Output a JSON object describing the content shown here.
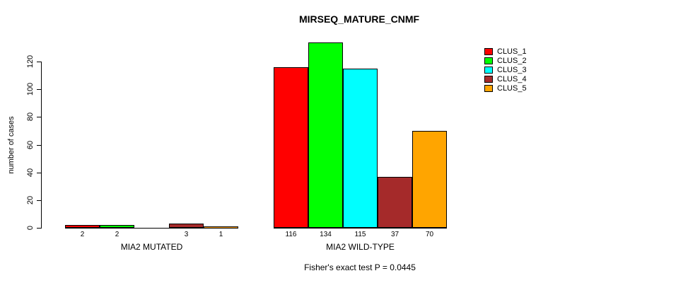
{
  "chart_data": {
    "type": "bar",
    "title": "MIRSEQ_MATURE_CNMF",
    "ylabel": "number of cases",
    "xlabel": "",
    "ylim": [
      0,
      120
    ],
    "yticks": [
      0,
      20,
      40,
      60,
      80,
      100,
      120
    ],
    "grid": false,
    "legend_position": "top-right",
    "categories": [
      "MIA2 MUTATED",
      "MIA2 WILD-TYPE"
    ],
    "series": [
      {
        "name": "CLUS_1",
        "color": "#FF0000",
        "values": [
          2,
          116
        ]
      },
      {
        "name": "CLUS_2",
        "color": "#00FF00",
        "values": [
          2,
          134
        ]
      },
      {
        "name": "CLUS_3",
        "color": "#00FFFF",
        "values": [
          0,
          115
        ]
      },
      {
        "name": "CLUS_4",
        "color": "#A52A2A",
        "values": [
          3,
          37
        ]
      },
      {
        "name": "CLUS_5",
        "color": "#FFA500",
        "values": [
          1,
          70
        ]
      }
    ],
    "bar_value_labels": {
      "MIA2 MUTATED": [
        "2",
        "2",
        "",
        "3",
        "1"
      ],
      "MIA2 WILD-TYPE": [
        "116",
        "134",
        "115",
        "37",
        "70"
      ]
    },
    "caption": "Fisher's exact test P = 0.0445"
  }
}
